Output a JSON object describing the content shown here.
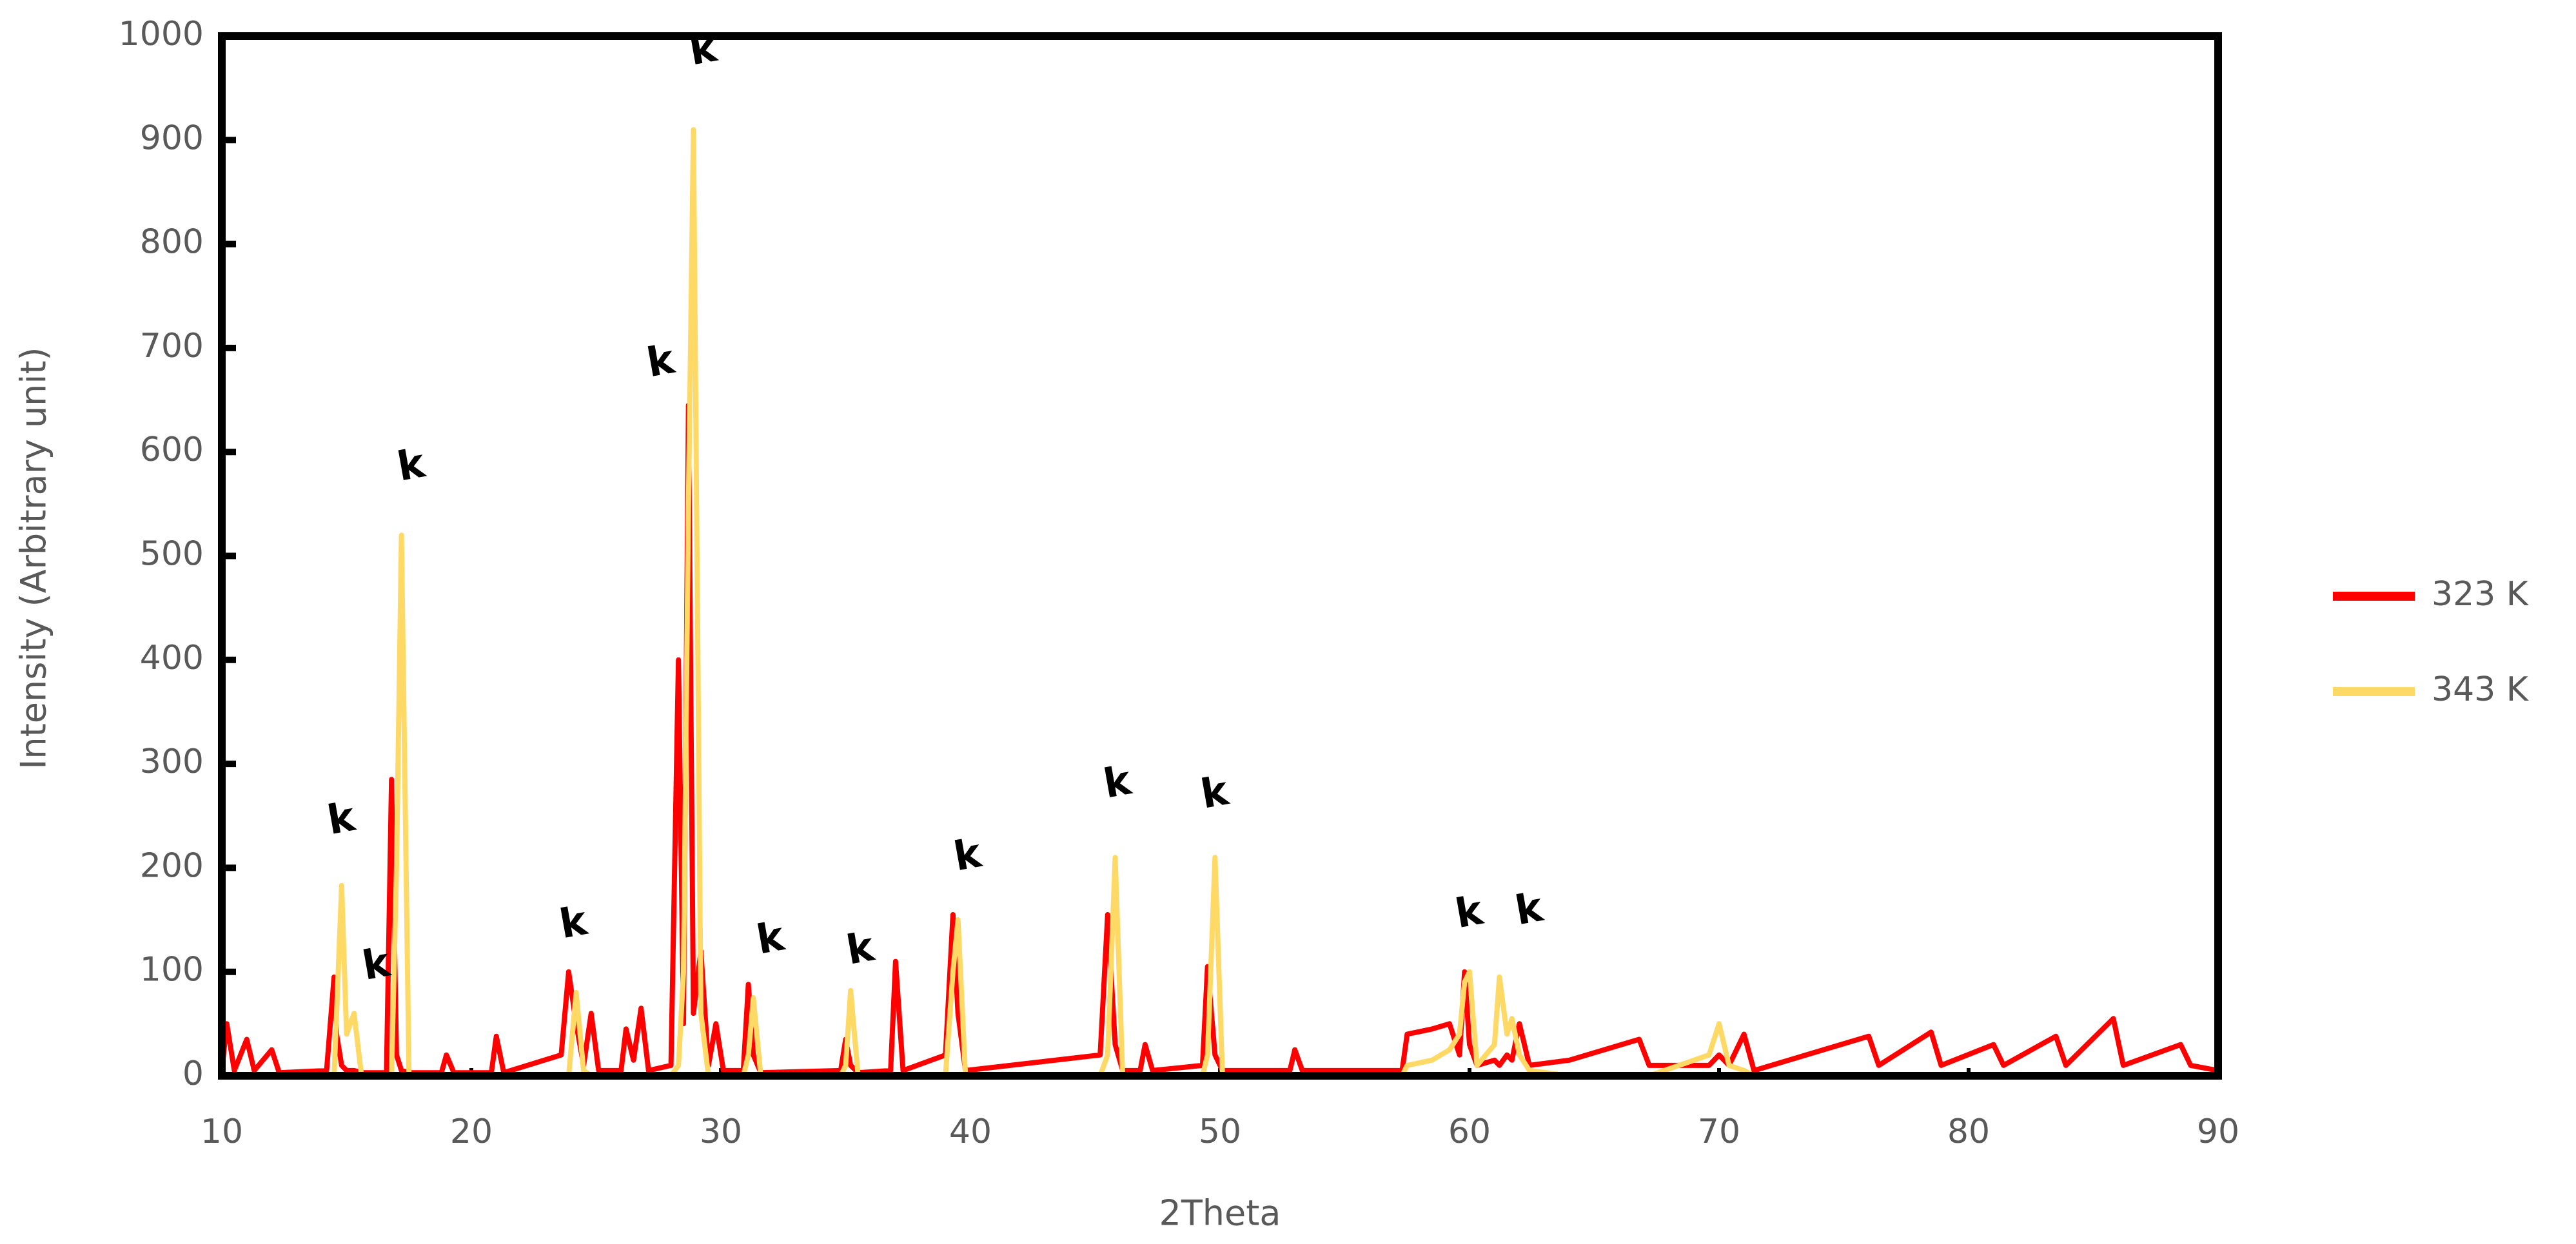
{
  "chart_data": {
    "type": "line",
    "xlabel": "2Theta",
    "ylabel": "Intensity (Arbitrary unit)",
    "xlim": [
      10,
      90
    ],
    "ylim": [
      0,
      1000
    ],
    "xticks": [
      10,
      20,
      30,
      40,
      50,
      60,
      70,
      80,
      90
    ],
    "yticks": [
      0,
      100,
      200,
      300,
      400,
      500,
      600,
      700,
      800,
      900,
      1000
    ],
    "grid": false,
    "legend": "right",
    "x": [
      10,
      10.2,
      10.5,
      11,
      11.3,
      12,
      12.3,
      14.2,
      14.5,
      14.6,
      14.8,
      15.0,
      15.3,
      15.6,
      16.6,
      16.8,
      17.0,
      17.2,
      17.5,
      18.8,
      19,
      19.3,
      20.8,
      21,
      21.3,
      23.6,
      23.9,
      24.2,
      24.5,
      24.8,
      25.1,
      26,
      26.2,
      26.5,
      26.8,
      27.1,
      28.0,
      28.3,
      28.5,
      28.7,
      28.9,
      29.2,
      29.5,
      29.8,
      30.1,
      30.9,
      31.1,
      31.3,
      31.6,
      34.8,
      35.0,
      35.2,
      35.5,
      36.8,
      37.0,
      37.3,
      39.0,
      39.3,
      39.5,
      39.8,
      45.2,
      45.5,
      45.8,
      46.1,
      46.8,
      47,
      47.3,
      49.3,
      49.5,
      49.8,
      50.1,
      52.8,
      53,
      53.3,
      57.3,
      57.5,
      58.5,
      59.2,
      59.6,
      59.8,
      60.0,
      60.3,
      61.0,
      61.2,
      61.5,
      61.7,
      62.0,
      62.4,
      64,
      66.8,
      67.2,
      69.6,
      70,
      70.4,
      71,
      71.4,
      76,
      76.4,
      78.5,
      78.9,
      81,
      81.4,
      83.5,
      83.9,
      85.8,
      86.2,
      88.5,
      88.9,
      90
    ],
    "series": [
      {
        "name": "323 K",
        "color": "#ff0000",
        "values": [
          5,
          50,
          5,
          35,
          5,
          25,
          3,
          5,
          95,
          40,
          10,
          5,
          5,
          3,
          3,
          285,
          20,
          5,
          3,
          3,
          20,
          3,
          3,
          38,
          3,
          20,
          100,
          50,
          10,
          60,
          5,
          5,
          45,
          15,
          65,
          5,
          10,
          400,
          50,
          645,
          60,
          120,
          10,
          50,
          5,
          5,
          88,
          20,
          3,
          5,
          35,
          10,
          3,
          5,
          110,
          5,
          20,
          155,
          60,
          5,
          20,
          155,
          30,
          5,
          5,
          30,
          5,
          10,
          105,
          20,
          5,
          5,
          25,
          5,
          5,
          40,
          45,
          50,
          20,
          100,
          30,
          10,
          15,
          10,
          20,
          15,
          50,
          10,
          15,
          35,
          10,
          10,
          20,
          10,
          40,
          5,
          38,
          10,
          42,
          10,
          30,
          10,
          38,
          10,
          55,
          10,
          30,
          10,
          5
        ]
      },
      {
        "name": "343 K",
        "color": "#ffd966",
        "values": [
          0,
          0,
          0,
          0,
          0,
          0,
          0,
          0,
          0,
          60,
          183,
          40,
          60,
          0,
          0,
          0,
          200,
          520,
          0,
          0,
          0,
          0,
          0,
          0,
          0,
          0,
          0,
          80,
          5,
          0,
          0,
          0,
          0,
          0,
          0,
          0,
          0,
          10,
          100,
          550,
          910,
          60,
          0,
          0,
          0,
          0,
          20,
          75,
          0,
          0,
          10,
          82,
          0,
          0,
          0,
          0,
          0,
          100,
          150,
          0,
          0,
          20,
          210,
          0,
          0,
          0,
          0,
          0,
          20,
          210,
          0,
          0,
          0,
          0,
          0,
          10,
          15,
          25,
          40,
          90,
          100,
          10,
          30,
          95,
          40,
          55,
          20,
          5,
          0,
          0,
          0,
          20,
          50,
          10,
          5,
          0,
          0,
          0,
          0,
          0,
          0,
          0,
          0,
          0,
          0,
          0,
          0,
          0,
          0
        ]
      }
    ],
    "annotations": [
      {
        "text": "k",
        "x": 14.8,
        "y": 245
      },
      {
        "text": "k",
        "x": 16.2,
        "y": 105
      },
      {
        "text": "k",
        "x": 17.6,
        "y": 585
      },
      {
        "text": "k",
        "x": 24.1,
        "y": 145
      },
      {
        "text": "k",
        "x": 27.6,
        "y": 685
      },
      {
        "text": "k",
        "x": 29.3,
        "y": 985
      },
      {
        "text": "k",
        "x": 32.0,
        "y": 130
      },
      {
        "text": "k",
        "x": 35.6,
        "y": 120
      },
      {
        "text": "k",
        "x": 39.9,
        "y": 210
      },
      {
        "text": "k",
        "x": 45.9,
        "y": 280
      },
      {
        "text": "k",
        "x": 49.8,
        "y": 270
      },
      {
        "text": "k",
        "x": 60.0,
        "y": 155
      },
      {
        "text": "k",
        "x": 62.4,
        "y": 158
      }
    ]
  }
}
